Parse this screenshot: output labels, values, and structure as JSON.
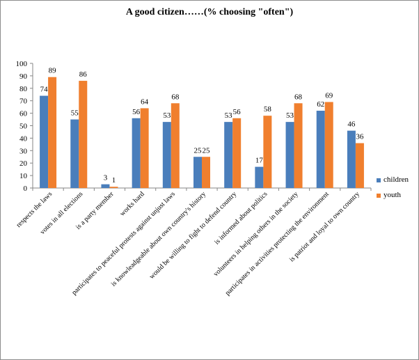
{
  "chart_data": {
    "type": "bar",
    "title": "A good citizen……(% choosing \"often\")",
    "xlabel": "",
    "ylabel": "",
    "ylim": [
      0,
      100
    ],
    "yticks": [
      0,
      10,
      20,
      30,
      40,
      50,
      60,
      70,
      80,
      90,
      100
    ],
    "grid": false,
    "legend_position": "right",
    "categories": [
      "respects the laws",
      "votes in all elections",
      "is a party member",
      "works hard",
      "participates to peaceful protests against unjust laws",
      "is knowleadgeable about own country's history",
      "would be willing to fight to defend country",
      "is informed about politics",
      "volunteers in helping others in the society",
      "participates in activities protecting the environment",
      "is patriot and loyal to own country"
    ],
    "series": [
      {
        "name": "children",
        "color": "#4a7ebb",
        "values": [
          74,
          55,
          3,
          56,
          53,
          25,
          53,
          17,
          53,
          62,
          46
        ]
      },
      {
        "name": "youth",
        "color": "#f07f2e",
        "values": [
          89,
          86,
          1,
          64,
          68,
          25,
          56,
          58,
          68,
          69,
          36
        ]
      }
    ]
  }
}
